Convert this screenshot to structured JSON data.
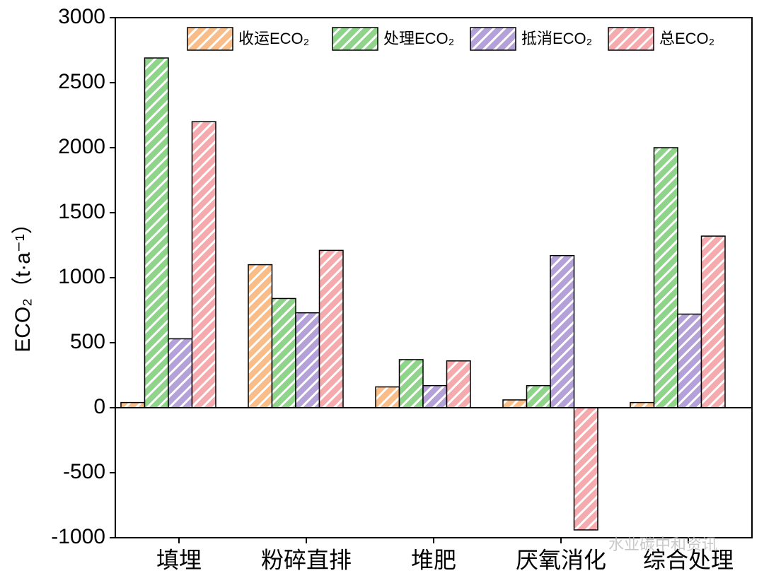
{
  "chart_data": {
    "type": "bar",
    "y_label": "ECO₂（t·a⁻¹）",
    "categories": [
      "填埋",
      "粉碎直排",
      "堆肥",
      "厌氧消化",
      "综合处理"
    ],
    "series": [
      {
        "name": "收运ECO₂",
        "color": "#f8bd88",
        "values": [
          40,
          1100,
          160,
          60,
          40
        ]
      },
      {
        "name": "处理ECO₂",
        "color": "#8fd48a",
        "values": [
          2690,
          840,
          370,
          170,
          2000
        ]
      },
      {
        "name": "抵消ECO₂",
        "color": "#b3a1d8",
        "values": [
          530,
          730,
          170,
          1170,
          720
        ]
      },
      {
        "name": "总ECO₂",
        "color": "#f5aaae",
        "values": [
          2200,
          1210,
          360,
          -940,
          1320
        ]
      }
    ],
    "ylim": [
      -1000,
      3000
    ],
    "yticks": [
      -1000,
      -500,
      0,
      500,
      1000,
      1500,
      2000,
      2500,
      3000
    ],
    "grid": false,
    "legend": "top",
    "watermark": "水业碳中和资讯"
  }
}
